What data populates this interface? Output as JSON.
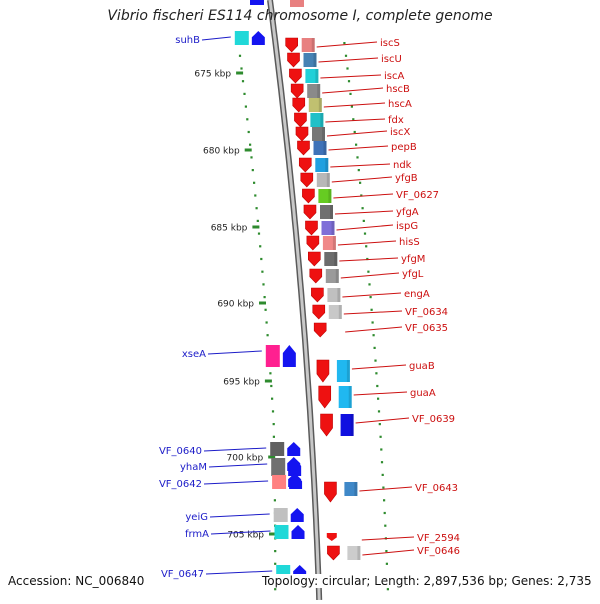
{
  "title": "Vibrio fischeri ES114 chromosome I, complete genome",
  "footer": {
    "accession": "Accession: NC_006840",
    "topology": "Topology: circular; Length: 2,897,536 bp; Genes: 2,735"
  },
  "colors": {
    "backbone": "#8a8a8a",
    "dots": "#2e8b2e",
    "left_label": "#1c1cc8",
    "right_label": "#cc1010"
  },
  "ticks": [
    {
      "label": "675 kbp"
    },
    {
      "label": "680 kbp"
    },
    {
      "label": "685 kbp"
    },
    {
      "label": "690 kbp"
    },
    {
      "label": "695 kbp"
    },
    {
      "label": "700 kbp"
    },
    {
      "label": "705 kbp"
    }
  ],
  "left_genes": [
    {
      "label": "suhB"
    },
    {
      "label": "xseA"
    },
    {
      "label": "VF_0640"
    },
    {
      "label": "yhaM"
    },
    {
      "label": "VF_0642"
    },
    {
      "label": "yeiG"
    },
    {
      "label": "frmA"
    },
    {
      "label": "VF_0647"
    }
  ],
  "right_genes": [
    {
      "label": "iscS"
    },
    {
      "label": "iscU"
    },
    {
      "label": "iscA"
    },
    {
      "label": "hscB"
    },
    {
      "label": "hscA"
    },
    {
      "label": "fdx"
    },
    {
      "label": "iscX"
    },
    {
      "label": "pepB"
    },
    {
      "label": "ndk"
    },
    {
      "label": "yfgB"
    },
    {
      "label": "VF_0627"
    },
    {
      "label": "yfgA"
    },
    {
      "label": "ispG"
    },
    {
      "label": "hisS"
    },
    {
      "label": "yfgM"
    },
    {
      "label": "yfgL"
    },
    {
      "label": "engA"
    },
    {
      "label": "VF_0634"
    },
    {
      "label": "VF_0635"
    },
    {
      "label": "guaB"
    },
    {
      "label": "guaA"
    },
    {
      "label": "VF_0639"
    },
    {
      "label": "VF_0643"
    },
    {
      "label": "VF_2594"
    },
    {
      "label": "VF_0646"
    }
  ]
}
